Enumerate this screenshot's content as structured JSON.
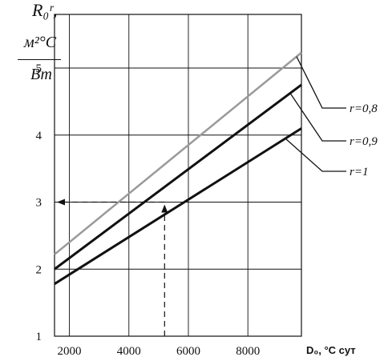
{
  "chart_data": {
    "type": "line",
    "ylabel_lines": [
      "R₀ʳ,",
      "м²°C",
      "Вт"
    ],
    "xlabel": "D₀, °С сут",
    "x_ticks": [
      2000,
      4000,
      6000,
      8000
    ],
    "y_ticks": [
      1,
      2,
      3,
      4,
      5
    ],
    "xlim": [
      1500,
      9800
    ],
    "ylim": [
      1,
      5.8
    ],
    "grid": true,
    "series": [
      {
        "name": "r=0,8",
        "x": [
          1500,
          9800
        ],
        "y": [
          2.22,
          5.23
        ],
        "color": "#9a9a9a"
      },
      {
        "name": "r=0,9",
        "x": [
          1500,
          9800
        ],
        "y": [
          2.0,
          4.75
        ],
        "color": "#111111"
      },
      {
        "name": "r=1",
        "x": [
          1500,
          9800
        ],
        "y": [
          1.78,
          4.1
        ],
        "color": "#111111"
      }
    ],
    "annotation": {
      "type": "dashed-arrow",
      "x": 5200,
      "y": 3.0,
      "from_x_axis": true,
      "to_y_axis": true
    }
  }
}
